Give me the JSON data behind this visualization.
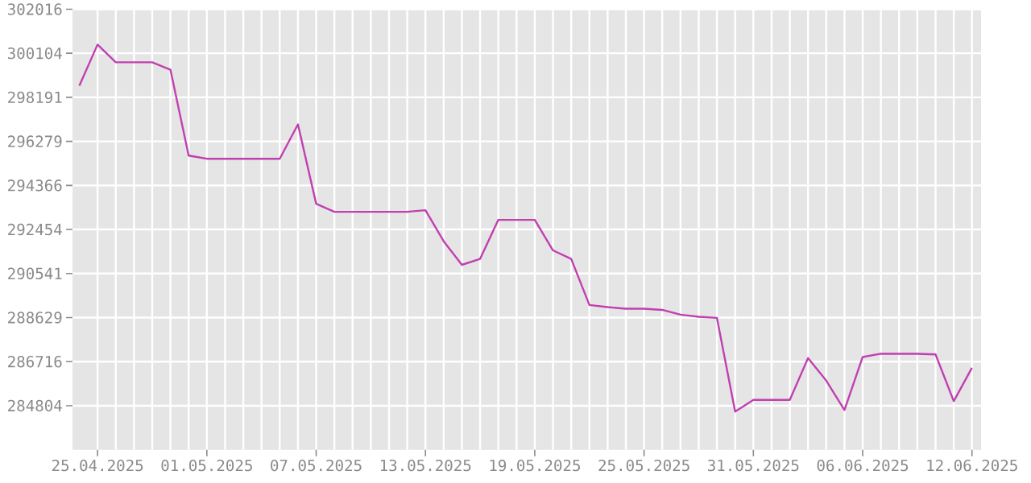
{
  "chart_data": {
    "type": "line",
    "color": "#c040b0",
    "grid": true,
    "x": [
      "2025-04-24",
      "2025-04-25",
      "2025-04-26",
      "2025-04-27",
      "2025-04-28",
      "2025-04-29",
      "2025-04-30",
      "2025-05-01",
      "2025-05-02",
      "2025-05-03",
      "2025-05-04",
      "2025-05-05",
      "2025-05-06",
      "2025-05-07",
      "2025-05-08",
      "2025-05-09",
      "2025-05-10",
      "2025-05-11",
      "2025-05-12",
      "2025-05-13",
      "2025-05-14",
      "2025-05-15",
      "2025-05-16",
      "2025-05-17",
      "2025-05-18",
      "2025-05-19",
      "2025-05-20",
      "2025-05-21",
      "2025-05-22",
      "2025-05-23",
      "2025-05-24",
      "2025-05-25",
      "2025-05-26",
      "2025-05-27",
      "2025-05-28",
      "2025-05-29",
      "2025-05-30",
      "2025-05-31",
      "2025-06-01",
      "2025-06-02",
      "2025-06-03",
      "2025-06-04",
      "2025-06-05",
      "2025-06-06",
      "2025-06-07",
      "2025-06-08",
      "2025-06-09",
      "2025-06-10",
      "2025-06-11",
      "2025-06-12"
    ],
    "values": [
      298693,
      300481,
      299713,
      299713,
      299713,
      299391,
      295664,
      295525,
      295525,
      295525,
      295525,
      295525,
      297018,
      293570,
      293221,
      293221,
      293221,
      293221,
      293221,
      293292,
      291944,
      290918,
      291176,
      292872,
      292872,
      292872,
      291546,
      291176,
      289173,
      289082,
      289012,
      289012,
      288963,
      288754,
      288663,
      288614,
      284545,
      285055,
      285055,
      285055,
      286869,
      285892,
      284615,
      286918,
      287058,
      287058,
      287058,
      287030,
      284999,
      286451
    ],
    "xlim": [
      "2025-04-23T15:00",
      "2025-06-12T12:00"
    ],
    "ylim": [
      282891,
      302016
    ],
    "xticks": [
      {
        "value": "2025-04-25",
        "label": "25.04.2025"
      },
      {
        "value": "2025-05-01",
        "label": "01.05.2025"
      },
      {
        "value": "2025-05-07",
        "label": "07.05.2025"
      },
      {
        "value": "2025-05-13",
        "label": "13.05.2025"
      },
      {
        "value": "2025-05-19",
        "label": "19.05.2025"
      },
      {
        "value": "2025-05-25",
        "label": "25.05.2025"
      },
      {
        "value": "2025-05-31",
        "label": "31.05.2025"
      },
      {
        "value": "2025-06-06",
        "label": "06.06.2025"
      },
      {
        "value": "2025-06-12",
        "label": "12.06.2025"
      }
    ],
    "yticks": [
      284804,
      286716,
      288629,
      290541,
      292454,
      294366,
      296279,
      298191,
      300104,
      302016
    ]
  }
}
